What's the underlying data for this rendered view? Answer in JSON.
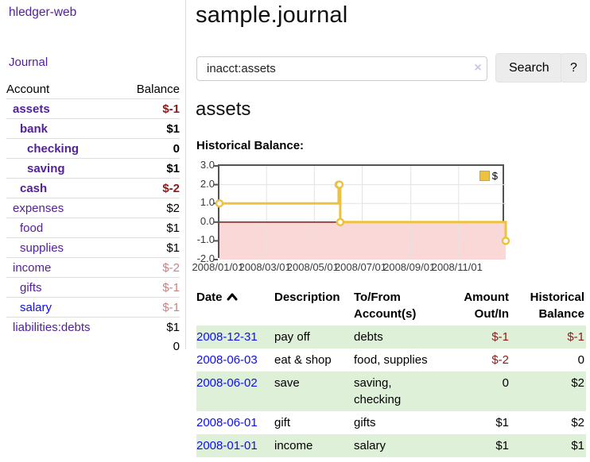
{
  "colors": {
    "link_purple": "#52219b",
    "link_blue": "#0f0fe8",
    "negative_strong": "#8b1a1a",
    "negative_faded": "#c48484",
    "row_green": "#dff0d8",
    "chart_gold": "#edc240",
    "chart_negative_region": "#fbd8d8",
    "chart_zero_line": "#8b0000",
    "chart_border": "#545454",
    "gridline": "#e3e3e3"
  },
  "sidebar": {
    "brand": "hledger-web",
    "journal_link": "Journal",
    "accounts": {
      "col_account": "Account",
      "col_balance": "Balance",
      "rows": [
        {
          "name": "assets",
          "depth": 1,
          "bold": true,
          "balance": "$-1",
          "neg": "strong",
          "unvisited": false
        },
        {
          "name": "bank",
          "depth": 2,
          "bold": true,
          "balance": "$1",
          "neg": "none",
          "unvisited": false
        },
        {
          "name": "checking",
          "depth": 3,
          "bold": true,
          "balance": "0",
          "neg": "none",
          "unvisited": false
        },
        {
          "name": "saving",
          "depth": 3,
          "bold": true,
          "balance": "$1",
          "neg": "none",
          "unvisited": false
        },
        {
          "name": "cash",
          "depth": 2,
          "bold": true,
          "balance": "$-2",
          "neg": "strong",
          "unvisited": false
        },
        {
          "name": "expenses",
          "depth": 1,
          "bold": false,
          "balance": "$2",
          "neg": "none",
          "unvisited": false
        },
        {
          "name": "food",
          "depth": 2,
          "bold": false,
          "balance": "$1",
          "neg": "none",
          "unvisited": false
        },
        {
          "name": "supplies",
          "depth": 2,
          "bold": false,
          "balance": "$1",
          "neg": "none",
          "unvisited": false
        },
        {
          "name": "income",
          "depth": 1,
          "bold": false,
          "balance": "$-2",
          "neg": "faded",
          "unvisited": false
        },
        {
          "name": "gifts",
          "depth": 2,
          "bold": false,
          "balance": "$-1",
          "neg": "faded",
          "unvisited": false
        },
        {
          "name": "salary",
          "depth": 2,
          "bold": false,
          "balance": "$-1",
          "neg": "faded",
          "unvisited": true
        },
        {
          "name": "liabilities:debts",
          "depth": 1,
          "bold": false,
          "balance": "$1",
          "neg": "none",
          "unvisited": false
        }
      ],
      "total": "0"
    }
  },
  "header": {
    "title": "sample.journal"
  },
  "search": {
    "value": "inacct:assets",
    "clear_icon": "×",
    "search_button": "Search",
    "help_button": "?"
  },
  "account_page": {
    "title": "assets",
    "chart_heading": "Historical Balance:"
  },
  "chart_data": {
    "type": "line",
    "step": true,
    "title": "Historical Balance:",
    "series": [
      {
        "name": "$",
        "color": "#edc240",
        "points": [
          [
            "2008-01-01",
            1
          ],
          [
            "2008-06-01",
            2
          ],
          [
            "2008-06-02",
            2
          ],
          [
            "2008-06-03",
            0
          ],
          [
            "2008-12-31",
            -1
          ]
        ]
      }
    ],
    "x_range": [
      "2008-01-01",
      "2008-12-31"
    ],
    "ylim": [
      -2,
      3
    ],
    "y_ticks": [
      {
        "label": "3.0",
        "value": 3
      },
      {
        "label": "2.0",
        "value": 2
      },
      {
        "label": "1.0",
        "value": 1
      },
      {
        "label": "0.0",
        "value": 0
      },
      {
        "label": "-1.0",
        "value": -1
      },
      {
        "label": "-2.0",
        "value": -2
      }
    ],
    "x_ticks": [
      {
        "label": "2008/01/01",
        "date": "2008-01-01"
      },
      {
        "label": "2008/03/01",
        "date": "2008-03-01"
      },
      {
        "label": "2008/05/01",
        "date": "2008-05-01"
      },
      {
        "label": "2008/07/01",
        "date": "2008-07-01"
      },
      {
        "label": "2008/09/01",
        "date": "2008-09-01"
      },
      {
        "label": "2008/11/01",
        "date": "2008-11-01"
      }
    ],
    "grid": true,
    "legend_position": "top-right",
    "legend_label": "$",
    "negative_region_shaded": true
  },
  "register": {
    "headers": {
      "date": "Date",
      "description": "Description",
      "accounts": [
        "To/From",
        "Account(s)"
      ],
      "amount": [
        "Amount",
        "Out/In"
      ],
      "balance": [
        "Historical",
        "Balance"
      ]
    },
    "rows": [
      {
        "date": "2008-12-31",
        "description": "pay off",
        "accounts": [
          "debts"
        ],
        "amount": "$-1",
        "amount_neg": true,
        "balance": "$-1",
        "balance_neg": true,
        "green": true
      },
      {
        "date": "2008-06-03",
        "description": "eat & shop",
        "accounts": [
          "food, supplies"
        ],
        "amount": "$-2",
        "amount_neg": true,
        "balance": "0",
        "balance_neg": false,
        "green": false
      },
      {
        "date": "2008-06-02",
        "description": "save",
        "accounts": [
          "saving,",
          "checking"
        ],
        "amount": "0",
        "amount_neg": false,
        "balance": "$2",
        "balance_neg": false,
        "green": true
      },
      {
        "date": "2008-06-01",
        "description": "gift",
        "accounts": [
          "gifts"
        ],
        "amount": "$1",
        "amount_neg": false,
        "balance": "$2",
        "balance_neg": false,
        "green": false
      },
      {
        "date": "2008-01-01",
        "description": "income",
        "accounts": [
          "salary"
        ],
        "amount": "$1",
        "amount_neg": false,
        "balance": "$1",
        "balance_neg": false,
        "green": true
      }
    ]
  }
}
